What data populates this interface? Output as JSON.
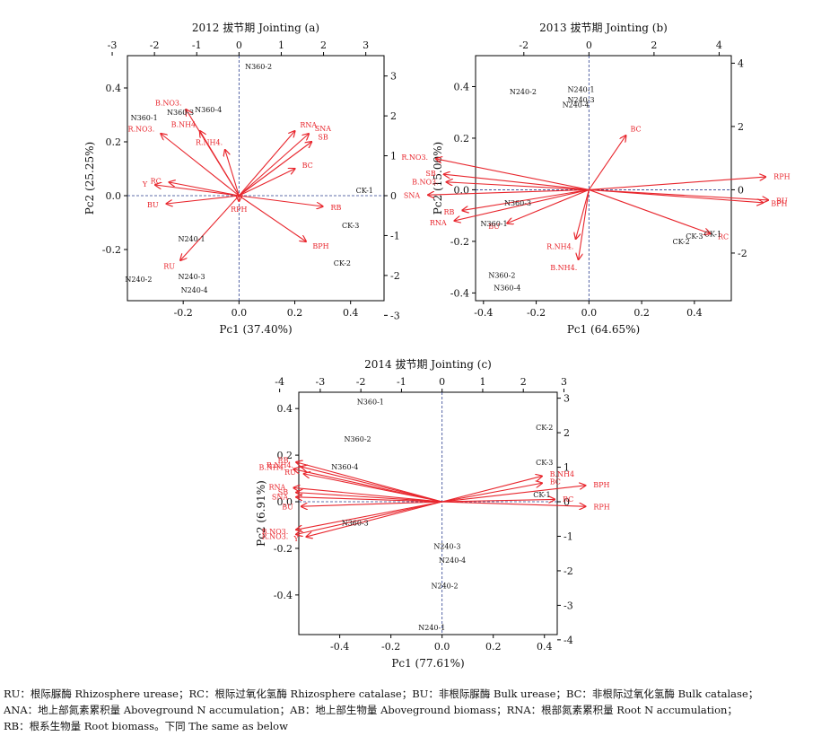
{
  "caption": {
    "line1": "RU：根际脲酶  Rhizosphere urease；RC：根际过氧化氢酶  Rhizosphere catalase；BU：非根际脲酶  Bulk urease；BC：非根际过氧化氢酶  Bulk catalase；",
    "line2": "ANA：地上部氮素累积量  Aboveground N accumulation；AB：地上部生物量  Aboveground biomass；RNA：根部氮素累积量  Root N accumulation；",
    "line3": "RB：根系生物量  Root biomass。下同  The same as below"
  },
  "colors": {
    "arrow": "#e8262d",
    "text": "#111111",
    "axis_dash": "#2b3f8f"
  },
  "chart_data": [
    {
      "type": "scatter",
      "subtype": "biplot",
      "title": "2012 拔节期 Jointing (a)",
      "xlabel": "Pc1 (37.40%)",
      "ylabel": "Pc2 (25.25%)",
      "xlim": [
        -0.4,
        0.52
      ],
      "ylim": [
        -0.39,
        0.52
      ],
      "xticks": [
        -0.2,
        0.0,
        0.2,
        0.4
      ],
      "yticks": [
        -0.2,
        0.0,
        0.2,
        0.4
      ],
      "x2ticks": [
        -3,
        -2,
        -1,
        0,
        1,
        2,
        3
      ],
      "y2ticks": [
        -3,
        -2,
        -1,
        0,
        1,
        2,
        3
      ],
      "x2_per_x": 6.6,
      "y2_per_y": 6.75,
      "grid": false,
      "samples": [
        {
          "name": "N360-2",
          "x": 0.07,
          "y": 0.48
        },
        {
          "name": "N360-1",
          "x": -0.34,
          "y": 0.29
        },
        {
          "name": "N360-3",
          "x": -0.21,
          "y": 0.31
        },
        {
          "name": "N360-4",
          "x": -0.11,
          "y": 0.32
        },
        {
          "name": "CK-1",
          "x": 0.45,
          "y": 0.02
        },
        {
          "name": "CK-3",
          "x": 0.4,
          "y": -0.11
        },
        {
          "name": "CK-2",
          "x": 0.37,
          "y": -0.25
        },
        {
          "name": "N240-1",
          "x": -0.17,
          "y": -0.16
        },
        {
          "name": "N240-2",
          "x": -0.36,
          "y": -0.31
        },
        {
          "name": "N240-3",
          "x": -0.17,
          "y": -0.3
        },
        {
          "name": "N240-4",
          "x": -0.16,
          "y": -0.35
        }
      ],
      "loadings": [
        {
          "name": "B.NO3.",
          "x": -0.19,
          "y": 0.32
        },
        {
          "name": "R.NO3.",
          "x": -0.28,
          "y": 0.23
        },
        {
          "name": "B.NH4",
          "x": -0.14,
          "y": 0.24
        },
        {
          "name": "R.NH4.",
          "x": -0.05,
          "y": 0.17
        },
        {
          "name": "RC",
          "x": -0.25,
          "y": 0.05
        },
        {
          "name": "Y",
          "x": -0.3,
          "y": 0.04
        },
        {
          "name": "BU",
          "x": -0.26,
          "y": -0.03
        },
        {
          "name": "RU",
          "x": -0.21,
          "y": -0.24
        },
        {
          "name": "RNA",
          "x": 0.2,
          "y": 0.24
        },
        {
          "name": "SNA",
          "x": 0.25,
          "y": 0.23
        },
        {
          "name": "SB",
          "x": 0.26,
          "y": 0.2
        },
        {
          "name": "BC",
          "x": 0.2,
          "y": 0.1
        },
        {
          "name": "RB",
          "x": 0.3,
          "y": -0.04
        },
        {
          "name": "BPH",
          "x": 0.24,
          "y": -0.17
        },
        {
          "name": "RPH",
          "x": 0.0,
          "y": -0.02
        }
      ]
    },
    {
      "type": "scatter",
      "subtype": "biplot",
      "title": "2013 拔节期 Jointing (b)",
      "xlabel": "Pc1 (64.65%)",
      "ylabel": "Pc2 (15.00%)",
      "xlim": [
        -0.43,
        0.54
      ],
      "ylim": [
        -0.43,
        0.52
      ],
      "xticks": [
        -0.4,
        -0.2,
        0.0,
        0.2,
        0.4
      ],
      "yticks": [
        -0.4,
        -0.2,
        0.0,
        0.2,
        0.4
      ],
      "x2ticks": [
        -2,
        0,
        2,
        4
      ],
      "y2ticks": [
        -2,
        0,
        2,
        4
      ],
      "x2_per_x": 8.1,
      "y2_per_y": 8.15,
      "grid": false,
      "samples": [
        {
          "name": "N240-2",
          "x": -0.25,
          "y": 0.38
        },
        {
          "name": "N240-1",
          "x": -0.03,
          "y": 0.39
        },
        {
          "name": "N240-3",
          "x": -0.03,
          "y": 0.35
        },
        {
          "name": "N240-4",
          "x": -0.05,
          "y": 0.33
        },
        {
          "name": "N360-3",
          "x": -0.27,
          "y": -0.05
        },
        {
          "name": "N360-1",
          "x": -0.36,
          "y": -0.13
        },
        {
          "name": "N360-2",
          "x": -0.33,
          "y": -0.33
        },
        {
          "name": "N360-4",
          "x": -0.31,
          "y": -0.38
        },
        {
          "name": "CK-1",
          "x": 0.47,
          "y": -0.17
        },
        {
          "name": "CK-3",
          "x": 0.4,
          "y": -0.18
        },
        {
          "name": "CK-2",
          "x": 0.35,
          "y": -0.2
        }
      ],
      "loadings": [
        {
          "name": "BC",
          "x": 0.14,
          "y": 0.21
        },
        {
          "name": "RPH",
          "x": 0.67,
          "y": 0.05
        },
        {
          "name": "BU",
          "x": 0.68,
          "y": -0.04
        },
        {
          "name": "BPH",
          "x": 0.66,
          "y": -0.05
        },
        {
          "name": "RC",
          "x": 0.46,
          "y": -0.17
        },
        {
          "name": "R.NO3.",
          "x": -0.58,
          "y": 0.12
        },
        {
          "name": "SB",
          "x": -0.55,
          "y": 0.06
        },
        {
          "name": "B.NO3.",
          "x": -0.54,
          "y": 0.03
        },
        {
          "name": "SNA",
          "x": -0.61,
          "y": -0.02
        },
        {
          "name": "RB",
          "x": -0.48,
          "y": -0.08
        },
        {
          "name": "RNA",
          "x": -0.51,
          "y": -0.12
        },
        {
          "name": "BU",
          "x": -0.31,
          "y": -0.13
        },
        {
          "name": "R.NH4.",
          "x": -0.05,
          "y": -0.19
        },
        {
          "name": "B.NH4.",
          "x": -0.04,
          "y": -0.27
        }
      ]
    },
    {
      "type": "scatter",
      "subtype": "biplot",
      "title": "2014 拔节期 Jointing (c)",
      "xlabel": "Pc1 (77.61%)",
      "ylabel": "Pc2 (6.91%)",
      "xlim": [
        -0.56,
        0.45
      ],
      "ylim": [
        -0.57,
        0.47
      ],
      "xticks": [
        -0.4,
        -0.2,
        0.0,
        0.2,
        0.4
      ],
      "yticks": [
        -0.4,
        -0.2,
        0.0,
        0.2,
        0.4
      ],
      "x2ticks": [
        -4,
        -3,
        -2,
        -1,
        0,
        1,
        2,
        3
      ],
      "y2ticks": [
        -4,
        -3,
        -2,
        -1,
        0,
        1,
        2,
        3
      ],
      "x2_per_x": 6.3,
      "y2_per_y": 6.75,
      "grid": false,
      "samples": [
        {
          "name": "N360-1",
          "x": -0.28,
          "y": 0.43
        },
        {
          "name": "N360-2",
          "x": -0.33,
          "y": 0.27
        },
        {
          "name": "N360-4",
          "x": -0.38,
          "y": 0.15
        },
        {
          "name": "N360-3",
          "x": -0.34,
          "y": -0.09
        },
        {
          "name": "CK-2",
          "x": 0.4,
          "y": 0.32
        },
        {
          "name": "CK-3",
          "x": 0.4,
          "y": 0.17
        },
        {
          "name": "CK-1",
          "x": 0.39,
          "y": 0.03
        },
        {
          "name": "N240-3",
          "x": 0.02,
          "y": -0.19
        },
        {
          "name": "N240-4",
          "x": 0.04,
          "y": -0.25
        },
        {
          "name": "N240-2",
          "x": 0.01,
          "y": -0.36
        },
        {
          "name": "N240-1",
          "x": -0.04,
          "y": -0.54
        }
      ],
      "loadings": [
        {
          "name": "RB",
          "x": -0.57,
          "y": 0.17
        },
        {
          "name": "R.NH4.",
          "x": -0.55,
          "y": 0.15
        },
        {
          "name": "B.NH4.",
          "x": -0.58,
          "y": 0.14
        },
        {
          "name": "RU",
          "x": -0.54,
          "y": 0.12
        },
        {
          "name": "RNA",
          "x": -0.58,
          "y": 0.06
        },
        {
          "name": "SB",
          "x": -0.57,
          "y": 0.04
        },
        {
          "name": "SNA",
          "x": -0.57,
          "y": 0.02
        },
        {
          "name": "BU",
          "x": -0.55,
          "y": -0.02
        },
        {
          "name": "B.NO3.",
          "x": -0.57,
          "y": -0.12
        },
        {
          "name": "R.NO3.",
          "x": -0.57,
          "y": -0.14
        },
        {
          "name": "Y",
          "x": -0.53,
          "y": -0.15
        },
        {
          "name": "B.NH4",
          "x": 0.39,
          "y": 0.11
        },
        {
          "name": "BC",
          "x": 0.39,
          "y": 0.08
        },
        {
          "name": "BPH",
          "x": 0.56,
          "y": 0.07
        },
        {
          "name": "RC",
          "x": 0.44,
          "y": 0.01
        },
        {
          "name": "RPH",
          "x": 0.56,
          "y": -0.02
        }
      ]
    }
  ]
}
